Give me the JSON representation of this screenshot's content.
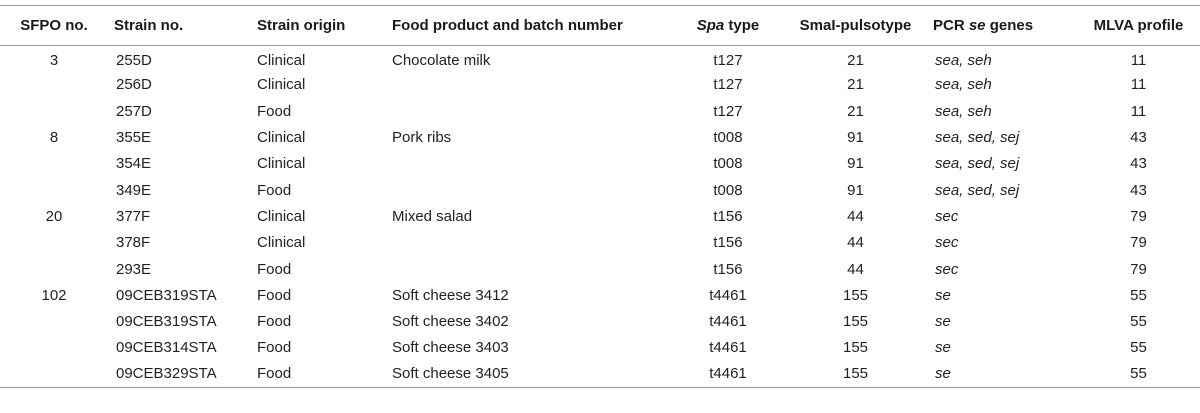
{
  "header": {
    "sfpo": "SFPO no.",
    "strain": "Strain no.",
    "origin": "Strain origin",
    "food": "Food product and batch number",
    "spa_italic": "Spa",
    "spa_rest": " type",
    "smai": "SmaI-pulsotype",
    "pcr_pre": "PCR ",
    "pcr_italic": "se",
    "pcr_post": " genes",
    "mlva": "MLVA profile"
  },
  "rows": [
    {
      "sfpo": "3",
      "strain": "255D",
      "origin": "Clinical",
      "food": "Chocolate milk",
      "spa": "t127",
      "pulsotype": "21",
      "genes": "sea, seh",
      "mlva": "11"
    },
    {
      "sfpo": "",
      "strain": "256D",
      "origin": "Clinical",
      "food": "",
      "spa": "t127",
      "pulsotype": "21",
      "genes": "sea, seh",
      "mlva": "11"
    },
    {
      "sfpo": "",
      "strain": "257D",
      "origin": "Food",
      "food": "",
      "spa": "t127",
      "pulsotype": "21",
      "genes": "sea, seh",
      "mlva": "11"
    },
    {
      "sfpo": "8",
      "strain": "355E",
      "origin": "Clinical",
      "food": "Pork ribs",
      "spa": "t008",
      "pulsotype": "91",
      "genes": "sea, sed, sej",
      "mlva": "43"
    },
    {
      "sfpo": "",
      "strain": "354E",
      "origin": "Clinical",
      "food": "",
      "spa": "t008",
      "pulsotype": "91",
      "genes": "sea, sed, sej",
      "mlva": "43"
    },
    {
      "sfpo": "",
      "strain": "349E",
      "origin": "Food",
      "food": "",
      "spa": "t008",
      "pulsotype": "91",
      "genes": "sea, sed, sej",
      "mlva": "43"
    },
    {
      "sfpo": "20",
      "strain": "377F",
      "origin": "Clinical",
      "food": "Mixed salad",
      "spa": "t156",
      "pulsotype": "44",
      "genes": "sec",
      "mlva": "79"
    },
    {
      "sfpo": "",
      "strain": "378F",
      "origin": "Clinical",
      "food": "",
      "spa": "t156",
      "pulsotype": "44",
      "genes": "sec",
      "mlva": "79"
    },
    {
      "sfpo": "",
      "strain": "293E",
      "origin": "Food",
      "food": "",
      "spa": "t156",
      "pulsotype": "44",
      "genes": "sec",
      "mlva": "79"
    },
    {
      "sfpo": "102",
      "strain": "09CEB319STA",
      "origin": "Food",
      "food": "Soft cheese 3412",
      "spa": "t4461",
      "pulsotype": "155",
      "genes": "se",
      "mlva": "55"
    },
    {
      "sfpo": "",
      "strain": "09CEB319STA",
      "origin": "Food",
      "food": "Soft cheese 3402",
      "spa": "t4461",
      "pulsotype": "155",
      "genes": "se",
      "mlva": "55"
    },
    {
      "sfpo": "",
      "strain": "09CEB314STA",
      "origin": "Food",
      "food": "Soft cheese 3403",
      "spa": "t4461",
      "pulsotype": "155",
      "genes": "se",
      "mlva": "55"
    },
    {
      "sfpo": "",
      "strain": "09CEB329STA",
      "origin": "Food",
      "food": "Soft cheese 3405",
      "spa": "t4461",
      "pulsotype": "155",
      "genes": "se",
      "mlva": "55"
    }
  ]
}
